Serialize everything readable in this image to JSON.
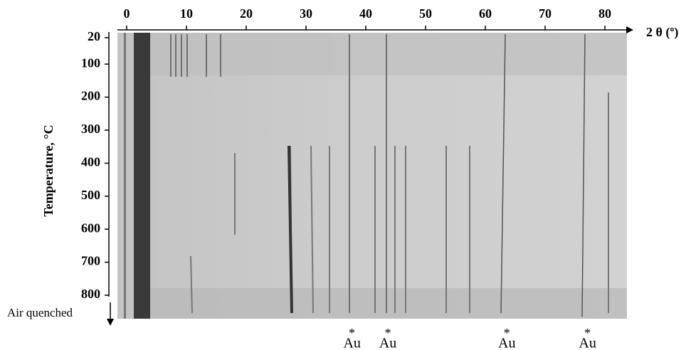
{
  "chart_data": {
    "type": "xrd-film",
    "x_label": "2 θ (º)",
    "y_label": "Temperature, °C",
    "xlim": [
      0,
      80
    ],
    "xticks": [
      0,
      10,
      20,
      30,
      40,
      50,
      60,
      70,
      80
    ],
    "ylim": [
      20,
      800
    ],
    "yticks": [
      20,
      100,
      200,
      300,
      400,
      500,
      600,
      700,
      800
    ],
    "bottom_label": "Air quenched",
    "annotations": [
      {
        "marker": "*",
        "text": "Au",
        "x": 37.7
      },
      {
        "marker": "*",
        "text": "Au",
        "x": 43.7
      },
      {
        "marker": "*",
        "text": "Au",
        "x": 63.6
      },
      {
        "marker": "*",
        "text": "Au",
        "x": 77.1
      }
    ]
  }
}
